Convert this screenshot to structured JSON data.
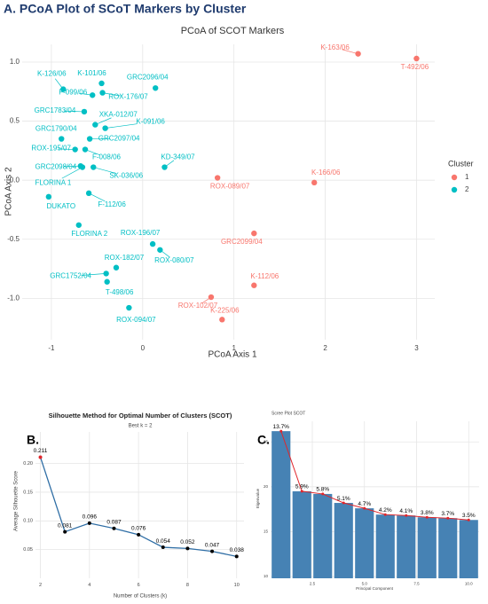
{
  "figure_title": "A. PCoA Plot of SCoT Markers by Cluster",
  "panel_labels": [
    "B.",
    "C."
  ],
  "chart_data": [
    {
      "type": "scatter",
      "title": "PCoA of SCOT Markers",
      "x_label": "PCoA Axis 1",
      "y_label": "PCoA Axis 2",
      "legend_title": "Cluster",
      "legend": "right",
      "grid": true,
      "xlim": [
        -1.32,
        3.2
      ],
      "xticks": [
        -1,
        0,
        1,
        2,
        3
      ],
      "ylim": [
        -1.35,
        1.15
      ],
      "yticks": [
        {
          "value": -1,
          "label": "-1.0"
        },
        -0.5,
        {
          "value": 0,
          "label": "0.0"
        },
        0.5,
        {
          "value": 1,
          "label": "1.0"
        }
      ],
      "series": [
        {
          "name": "1",
          "color": "#F8766D",
          "labels": [
            "K-163/06",
            "T-492/06",
            "ROX-089/07",
            "K-166/06",
            "GRC2099/04",
            "K-112/06",
            "ROX-102/07",
            "K-225/06"
          ],
          "x": [
            2.36,
            3.0,
            0.82,
            1.88,
            1.22,
            1.22,
            0.75,
            0.87
          ],
          "values": [
            1.07,
            1.03,
            0.02,
            -0.02,
            -0.45,
            -0.89,
            -0.99,
            -1.18
          ]
        },
        {
          "name": "2",
          "color": "#00BFC4",
          "labels": [
            "K-126/06",
            "K-101/06",
            "F-099/06",
            "ROX-176/07",
            "GRC2096/04",
            "GRC1783/04",
            "XKA-012/07",
            "K-091/06",
            "GRC1790/04",
            "GRC2097/04",
            "ROX-195/07",
            "F-008/06",
            "KD-349/07",
            "GRC2098/04",
            "FLORINA 1",
            "SK-036/06",
            "DUKATO",
            "F-112/06",
            "FLORINA 2",
            "ROX-196/07",
            "ROX-080/07",
            "ROX-182/07",
            "GRC1752/04",
            "T-498/06",
            "ROX-094/07"
          ],
          "x": [
            -0.87,
            -0.45,
            -0.55,
            -0.44,
            0.14,
            -0.64,
            -0.52,
            -0.41,
            -0.89,
            -0.58,
            -0.74,
            -0.63,
            0.24,
            -0.68,
            -0.66,
            -0.54,
            -1.03,
            -0.59,
            -0.7,
            0.11,
            0.19,
            -0.29,
            -0.4,
            -0.39,
            -0.15
          ],
          "values": [
            0.77,
            0.82,
            0.72,
            0.74,
            0.78,
            0.58,
            0.47,
            0.44,
            0.35,
            0.35,
            0.26,
            0.26,
            0.11,
            0.12,
            0.11,
            0.11,
            -0.14,
            -0.11,
            -0.38,
            -0.54,
            -0.59,
            -0.74,
            -0.79,
            -0.86,
            -1.08
          ]
        }
      ]
    },
    {
      "type": "line",
      "title": "Silhouette Method for Optimal Number of Clusters (SCOT)",
      "subtitle": "Best k = 2",
      "x_label": "Number of Clusters (k)",
      "y_label": "Average Silhouette Score",
      "grid": true,
      "color": "#2f6ea5",
      "highlight_color": "#e0262b",
      "x": [
        2,
        3,
        4,
        5,
        6,
        7,
        8,
        9,
        10
      ],
      "values": [
        0.211,
        0.081,
        0.096,
        0.087,
        0.076,
        0.054,
        0.052,
        0.047,
        0.038
      ],
      "xlim": [
        1.8,
        10.3
      ],
      "xticks": [
        2,
        4,
        6,
        8,
        10
      ],
      "ylim": [
        0.0,
        0.255
      ],
      "yticks": [
        0.05,
        {
          "value": 0.1,
          "label": "0.10"
        },
        0.15,
        {
          "value": 0.2,
          "label": "0.20"
        }
      ]
    },
    {
      "type": "bar",
      "title": "Scree Plot SCOT",
      "x_label": "Principal Component",
      "y_label": "Eigenvalue",
      "grid": true,
      "color": "#4682B4",
      "line_color": "#e0262b",
      "x": [
        1,
        2,
        3,
        4,
        5,
        6,
        7,
        8,
        9,
        10
      ],
      "values": [
        26.2,
        19.5,
        19.2,
        18.2,
        17.6,
        16.9,
        16.8,
        16.6,
        16.5,
        16.3
      ],
      "percent_labels": [
        "13.7%",
        "5.9%",
        "5.8%",
        "5.1%",
        "4.7%",
        "4.2%",
        "4.1%",
        "3.8%",
        "3.7%",
        "3.5%"
      ],
      "xlim": [
        0.5,
        10.5
      ],
      "xticks": [
        2.5,
        {
          "value": 5,
          "label": "5.0"
        },
        7.5,
        {
          "value": 10,
          "label": "10.0"
        }
      ],
      "ylim": [
        9.8,
        27.3
      ],
      "yticks": [
        10,
        15,
        20,
        25
      ]
    }
  ]
}
